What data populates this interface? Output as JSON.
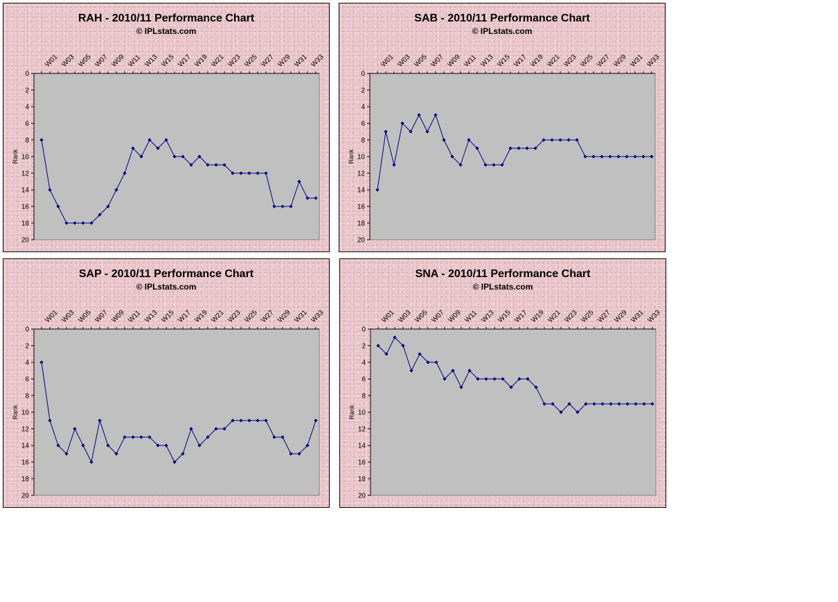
{
  "colors": {
    "panel_background": "#e8c4c8",
    "plot_background": "#c0c0c0",
    "series_line": "#000080",
    "text": "#000000"
  },
  "chart_data": [
    {
      "type": "line",
      "title": "RAH - 2010/11 Performance Chart",
      "subtitle": "© IPLstats.com",
      "ylabel": "Rank",
      "xlabel": "",
      "y_inverted": true,
      "ylim": [
        0,
        20
      ],
      "yticks": [
        "0",
        "2",
        "4",
        "6",
        "8",
        "10",
        "12",
        "14",
        "16",
        "18",
        "20"
      ],
      "xticks": [
        "W01",
        "W03",
        "W05",
        "W07",
        "W09",
        "W11",
        "W13",
        "W15",
        "W17",
        "W19",
        "W21",
        "W23",
        "W25",
        "W27",
        "W29",
        "W31",
        "W33"
      ],
      "grid": false,
      "legend": "none",
      "x": [
        0,
        1,
        2,
        3,
        4,
        5,
        6,
        7,
        8,
        9,
        10,
        11,
        12,
        13,
        14,
        15,
        16,
        17,
        18,
        19,
        20,
        21,
        22,
        23,
        24,
        25,
        26,
        27,
        28,
        29,
        30,
        31,
        32,
        33
      ],
      "values": [
        8,
        14,
        16,
        18,
        18,
        18,
        18,
        17,
        16,
        14,
        12,
        9,
        10,
        8,
        9,
        8,
        10,
        10,
        11,
        10,
        11,
        11,
        11,
        12,
        12,
        12,
        12,
        12,
        16,
        16,
        16,
        13,
        15,
        15
      ]
    },
    {
      "type": "line",
      "title": "SAB - 2010/11 Performance Chart",
      "subtitle": "© IPLstats.com",
      "ylabel": "Rank",
      "xlabel": "",
      "y_inverted": true,
      "ylim": [
        0,
        20
      ],
      "yticks": [
        "0",
        "2",
        "4",
        "6",
        "8",
        "10",
        "12",
        "14",
        "16",
        "18",
        "20"
      ],
      "xticks": [
        "W01",
        "W03",
        "W05",
        "W07",
        "W09",
        "W11",
        "W13",
        "W15",
        "W17",
        "W19",
        "W21",
        "W23",
        "W25",
        "W27",
        "W29",
        "W31",
        "W33"
      ],
      "grid": false,
      "legend": "none",
      "x": [
        0,
        1,
        2,
        3,
        4,
        5,
        6,
        7,
        8,
        9,
        10,
        11,
        12,
        13,
        14,
        15,
        16,
        17,
        18,
        19,
        20,
        21,
        22,
        23,
        24,
        25,
        26,
        27,
        28,
        29,
        30,
        31,
        32,
        33
      ],
      "values": [
        14,
        7,
        11,
        6,
        7,
        5,
        7,
        5,
        8,
        10,
        11,
        8,
        9,
        11,
        11,
        11,
        9,
        9,
        9,
        9,
        8,
        8,
        8,
        8,
        8,
        10,
        10,
        10,
        10,
        10,
        10,
        10,
        10,
        10
      ]
    },
    {
      "type": "line",
      "title": "SAP - 2010/11 Performance Chart",
      "subtitle": "© IPLstats.com",
      "ylabel": "Rank",
      "xlabel": "",
      "y_inverted": true,
      "ylim": [
        0,
        20
      ],
      "yticks": [
        "0",
        "2",
        "4",
        "6",
        "8",
        "10",
        "12",
        "14",
        "16",
        "18",
        "20"
      ],
      "xticks": [
        "W01",
        "W03",
        "W05",
        "W07",
        "W09",
        "W11",
        "W13",
        "W15",
        "W17",
        "W19",
        "W21",
        "W23",
        "W25",
        "W27",
        "W29",
        "W31",
        "W33"
      ],
      "grid": false,
      "legend": "none",
      "x": [
        0,
        1,
        2,
        3,
        4,
        5,
        6,
        7,
        8,
        9,
        10,
        11,
        12,
        13,
        14,
        15,
        16,
        17,
        18,
        19,
        20,
        21,
        22,
        23,
        24,
        25,
        26,
        27,
        28,
        29,
        30,
        31,
        32,
        33
      ],
      "values": [
        4,
        11,
        14,
        15,
        12,
        14,
        16,
        11,
        14,
        15,
        13,
        13,
        13,
        13,
        14,
        14,
        16,
        15,
        12,
        14,
        13,
        12,
        12,
        11,
        11,
        11,
        11,
        11,
        13,
        13,
        15,
        15,
        14,
        11
      ]
    },
    {
      "type": "line",
      "title": "SNA - 2010/11 Performance Chart",
      "subtitle": "© IPLstats.com",
      "ylabel": "Rank",
      "xlabel": "",
      "y_inverted": true,
      "ylim": [
        0,
        20
      ],
      "yticks": [
        "0",
        "2",
        "4",
        "6",
        "8",
        "10",
        "12",
        "14",
        "16",
        "18",
        "20"
      ],
      "xticks": [
        "W01",
        "W03",
        "W05",
        "W07",
        "W09",
        "W11",
        "W13",
        "W15",
        "W17",
        "W19",
        "W21",
        "W23",
        "W25",
        "W27",
        "W29",
        "W31",
        "W33"
      ],
      "grid": false,
      "legend": "none",
      "x": [
        0,
        1,
        2,
        3,
        4,
        5,
        6,
        7,
        8,
        9,
        10,
        11,
        12,
        13,
        14,
        15,
        16,
        17,
        18,
        19,
        20,
        21,
        22,
        23,
        24,
        25,
        26,
        27,
        28,
        29,
        30,
        31,
        32,
        33
      ],
      "values": [
        2,
        3,
        1,
        2,
        5,
        3,
        4,
        4,
        6,
        5,
        7,
        5,
        6,
        6,
        6,
        6,
        7,
        6,
        6,
        7,
        9,
        9,
        10,
        9,
        10,
        9,
        9,
        9,
        9,
        9,
        9,
        9,
        9,
        9
      ]
    }
  ]
}
